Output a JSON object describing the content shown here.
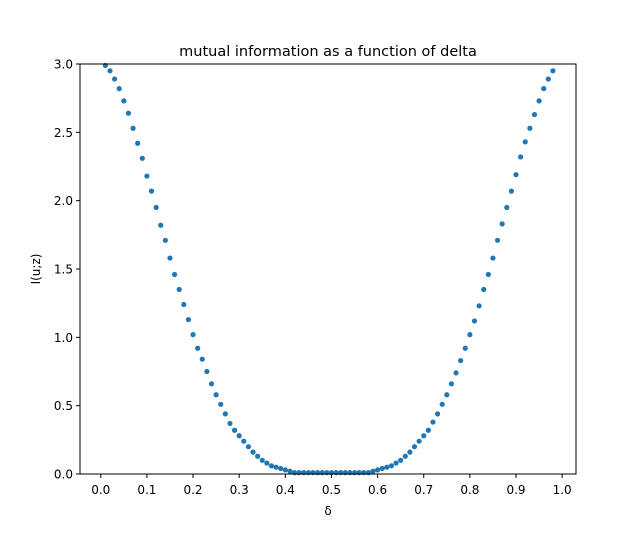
{
  "chart_data": {
    "type": "scatter",
    "title": "mutual information as a function of delta",
    "xlabel": "δ",
    "ylabel": "I(u;z)",
    "xlim": [
      -0.045,
      1.03
    ],
    "ylim": [
      0,
      3.0
    ],
    "xticks": [
      "0.0",
      "0.1",
      "0.2",
      "0.3",
      "0.4",
      "0.5",
      "0.6",
      "0.7",
      "0.8",
      "0.9",
      "1.0"
    ],
    "yticks": [
      "0.0",
      "0.5",
      "1.0",
      "1.5",
      "2.0",
      "2.5",
      "3.0"
    ],
    "marker_color": "#1f77b4",
    "grid": false,
    "x": [
      0.01,
      0.02,
      0.03,
      0.04,
      0.05,
      0.06,
      0.07,
      0.08,
      0.09,
      0.1,
      0.11,
      0.12,
      0.13,
      0.14,
      0.15,
      0.16,
      0.17,
      0.18,
      0.19,
      0.2,
      0.21,
      0.22,
      0.23,
      0.24,
      0.25,
      0.26,
      0.27,
      0.28,
      0.29,
      0.3,
      0.31,
      0.32,
      0.33,
      0.34,
      0.35,
      0.36,
      0.37,
      0.38,
      0.39,
      0.4,
      0.41,
      0.42,
      0.43,
      0.44,
      0.45,
      0.46,
      0.47,
      0.48,
      0.49,
      0.5,
      0.51,
      0.52,
      0.53,
      0.54,
      0.55,
      0.56,
      0.57,
      0.58,
      0.59,
      0.6,
      0.61,
      0.62,
      0.63,
      0.64,
      0.65,
      0.66,
      0.67,
      0.68,
      0.69,
      0.7,
      0.71,
      0.72,
      0.73,
      0.74,
      0.75,
      0.76,
      0.77,
      0.78,
      0.79,
      0.8,
      0.81,
      0.82,
      0.83,
      0.84,
      0.85,
      0.86,
      0.87,
      0.88,
      0.89,
      0.9,
      0.91,
      0.92,
      0.93,
      0.94,
      0.95,
      0.96,
      0.97,
      0.98
    ],
    "y": [
      2.99,
      2.95,
      2.89,
      2.82,
      2.73,
      2.64,
      2.53,
      2.42,
      2.31,
      2.18,
      2.07,
      1.95,
      1.82,
      1.71,
      1.58,
      1.46,
      1.35,
      1.24,
      1.13,
      1.02,
      0.92,
      0.84,
      0.75,
      0.66,
      0.58,
      0.51,
      0.44,
      0.37,
      0.32,
      0.28,
      0.24,
      0.2,
      0.16,
      0.13,
      0.1,
      0.08,
      0.06,
      0.05,
      0.04,
      0.03,
      0.02,
      0.01,
      0.01,
      0.01,
      0.01,
      0.01,
      0.01,
      0.01,
      0.01,
      0.01,
      0.01,
      0.01,
      0.01,
      0.01,
      0.01,
      0.01,
      0.01,
      0.01,
      0.02,
      0.03,
      0.04,
      0.05,
      0.06,
      0.08,
      0.1,
      0.13,
      0.16,
      0.2,
      0.24,
      0.28,
      0.32,
      0.38,
      0.44,
      0.51,
      0.58,
      0.66,
      0.74,
      0.83,
      0.92,
      1.02,
      1.12,
      1.23,
      1.35,
      1.46,
      1.58,
      1.71,
      1.83,
      1.95,
      2.07,
      2.19,
      2.32,
      2.43,
      2.53,
      2.63,
      2.73,
      2.82,
      2.89,
      2.95
    ]
  }
}
